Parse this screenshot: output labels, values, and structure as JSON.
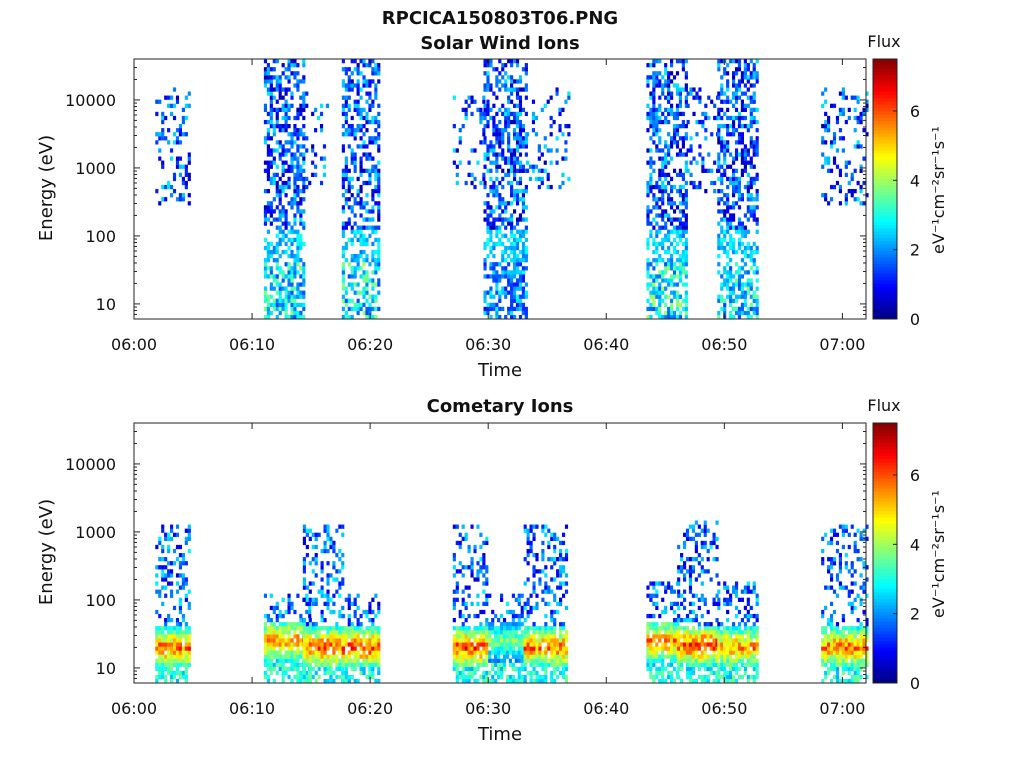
{
  "figure": {
    "title": "RPCICA150803T06.PNG"
  },
  "chart_data": [
    {
      "type": "heatmap",
      "title": "Solar Wind Ions",
      "xlabel": "Time",
      "ylabel": "Energy (eV)",
      "x_ticks": [
        "06:00",
        "06:10",
        "06:20",
        "06:30",
        "06:40",
        "06:50",
        "07:00"
      ],
      "x_tick_minutes": [
        0,
        10,
        20,
        30,
        40,
        50,
        60
      ],
      "xlim_minutes": [
        0,
        62
      ],
      "y_scale": "log",
      "y_ticks": [
        "10",
        "100",
        "1000",
        "10000"
      ],
      "y_tick_values": [
        10,
        100,
        1000,
        10000
      ],
      "ylim": [
        6,
        40000
      ],
      "colorbar": {
        "label": "Flux",
        "units": "eV⁻¹cm⁻²sr⁻¹s⁻¹",
        "ticks": [
          0,
          2,
          4,
          6
        ],
        "range": [
          0,
          7.5
        ],
        "colormap": "jet"
      },
      "bursts": [
        {
          "start_min": 1.8,
          "end_min": 4.8,
          "flux_peak": 2.6,
          "energy_low": 300,
          "energy_high": 15000,
          "density": 0.28
        },
        {
          "start_min": 11.0,
          "end_min": 14.4,
          "flux_peak": 4.0,
          "energy_low": 6,
          "energy_high": 40000,
          "density": 0.62
        },
        {
          "start_min": 14.5,
          "end_min": 16.3,
          "flux_peak": 2.2,
          "energy_low": 400,
          "energy_high": 15000,
          "density": 0.18
        },
        {
          "start_min": 17.6,
          "end_min": 20.8,
          "flux_peak": 4.2,
          "energy_low": 6,
          "energy_high": 40000,
          "density": 0.6
        },
        {
          "start_min": 27.0,
          "end_min": 29.6,
          "flux_peak": 2.4,
          "energy_low": 500,
          "energy_high": 15000,
          "density": 0.22
        },
        {
          "start_min": 29.6,
          "end_min": 33.2,
          "flux_peak": 3.0,
          "energy_low": 6,
          "energy_high": 40000,
          "density": 0.62
        },
        {
          "start_min": 33.2,
          "end_min": 36.8,
          "flux_peak": 2.4,
          "energy_low": 500,
          "energy_high": 15000,
          "density": 0.2
        },
        {
          "start_min": 43.4,
          "end_min": 46.8,
          "flux_peak": 4.3,
          "energy_low": 6,
          "energy_high": 40000,
          "density": 0.62
        },
        {
          "start_min": 46.8,
          "end_min": 49.4,
          "flux_peak": 2.6,
          "energy_low": 400,
          "energy_high": 15000,
          "density": 0.25
        },
        {
          "start_min": 49.4,
          "end_min": 52.8,
          "flux_peak": 4.0,
          "energy_low": 6,
          "energy_high": 40000,
          "density": 0.6
        },
        {
          "start_min": 58.2,
          "end_min": 62.0,
          "flux_peak": 2.6,
          "energy_low": 300,
          "energy_high": 15000,
          "density": 0.3
        }
      ]
    },
    {
      "type": "heatmap",
      "title": "Cometary Ions",
      "xlabel": "Time",
      "ylabel": "Energy (eV)",
      "x_ticks": [
        "06:00",
        "06:10",
        "06:20",
        "06:30",
        "06:40",
        "06:50",
        "07:00"
      ],
      "x_tick_minutes": [
        0,
        10,
        20,
        30,
        40,
        50,
        60
      ],
      "xlim_minutes": [
        0,
        62
      ],
      "y_scale": "log",
      "y_ticks": [
        "10",
        "100",
        "1000",
        "10000"
      ],
      "y_tick_values": [
        10,
        100,
        1000,
        10000
      ],
      "ylim": [
        6,
        40000
      ],
      "colorbar": {
        "label": "Flux",
        "units": "eV⁻¹cm⁻²sr⁻¹s⁻¹",
        "ticks": [
          0,
          2,
          4,
          6
        ],
        "range": [
          0,
          7.5
        ],
        "colormap": "jet"
      },
      "bursts": [
        {
          "start_min": 1.8,
          "end_min": 4.8,
          "flux_peak": 6.8,
          "peak_energy": 20,
          "energy_low": 6,
          "energy_high": 1200,
          "density": 0.45
        },
        {
          "start_min": 11.0,
          "end_min": 14.8,
          "flux_peak": 6.5,
          "peak_energy": 25,
          "energy_low": 6,
          "energy_high": 120,
          "density": 0.55
        },
        {
          "start_min": 14.3,
          "end_min": 17.6,
          "flux_peak": 7.0,
          "peak_energy": 20,
          "energy_low": 6,
          "energy_high": 1200,
          "density": 0.45
        },
        {
          "start_min": 17.6,
          "end_min": 20.8,
          "flux_peak": 7.2,
          "peak_energy": 20,
          "energy_low": 6,
          "energy_high": 120,
          "density": 0.55
        },
        {
          "start_min": 27.0,
          "end_min": 30.0,
          "flux_peak": 7.2,
          "peak_energy": 20,
          "energy_low": 6,
          "energy_high": 1200,
          "density": 0.45
        },
        {
          "start_min": 30.0,
          "end_min": 33.0,
          "flux_peak": 4.5,
          "peak_energy": 25,
          "energy_low": 6,
          "energy_high": 120,
          "density": 0.5
        },
        {
          "start_min": 33.0,
          "end_min": 36.6,
          "flux_peak": 6.8,
          "peak_energy": 20,
          "energy_low": 6,
          "energy_high": 1200,
          "density": 0.45
        },
        {
          "start_min": 43.4,
          "end_min": 46.0,
          "flux_peak": 6.8,
          "peak_energy": 25,
          "energy_low": 6,
          "energy_high": 200,
          "density": 0.55
        },
        {
          "start_min": 46.0,
          "end_min": 49.4,
          "flux_peak": 7.3,
          "peak_energy": 22,
          "energy_low": 6,
          "energy_high": 1500,
          "density": 0.45
        },
        {
          "start_min": 49.4,
          "end_min": 52.8,
          "flux_peak": 6.5,
          "peak_energy": 20,
          "energy_low": 6,
          "energy_high": 200,
          "density": 0.55
        },
        {
          "start_min": 58.2,
          "end_min": 62.0,
          "flux_peak": 6.8,
          "peak_energy": 20,
          "energy_low": 6,
          "energy_high": 1200,
          "density": 0.45
        }
      ]
    }
  ]
}
